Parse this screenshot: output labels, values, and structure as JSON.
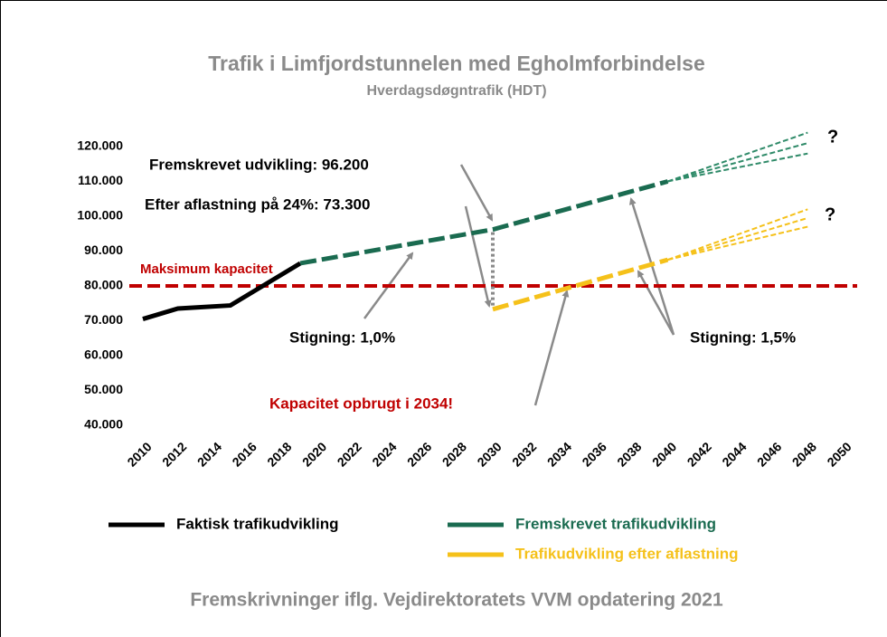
{
  "chart_data": {
    "type": "line",
    "title": "Trafik i Limfjordstunnelen med Egholmforbindelse",
    "subtitle": "Hverdagsdøgntrafik (HDT)",
    "source": "Fremskrivninger iflg. Vejdirektoratets VVM opdatering 2021",
    "xlim": [
      2010,
      2050
    ],
    "xticks": [
      2010,
      2012,
      2014,
      2016,
      2018,
      2020,
      2022,
      2024,
      2026,
      2028,
      2030,
      2032,
      2034,
      2036,
      2038,
      2040,
      2042,
      2044,
      2046,
      2048,
      2050
    ],
    "ylim": [
      40000,
      120000
    ],
    "yticks": [
      {
        "value": 40000,
        "label": "40.000"
      },
      {
        "value": 50000,
        "label": "50.000"
      },
      {
        "value": 60000,
        "label": "60.000"
      },
      {
        "value": 70000,
        "label": "70.000"
      },
      {
        "value": 80000,
        "label": "80.000"
      },
      {
        "value": 90000,
        "label": "90.000"
      },
      {
        "value": 100000,
        "label": "100.000"
      },
      {
        "value": 110000,
        "label": "110.000"
      },
      {
        "value": 120000,
        "label": "120.000"
      }
    ],
    "series": [
      {
        "name": "Faktisk trafikudvikling",
        "color": "#000000",
        "line_style": "solid",
        "x": [
          2010,
          2012,
          2015,
          2019
        ],
        "values": [
          70500,
          73500,
          74400,
          86500
        ]
      },
      {
        "name": "Fremskrevet trafikudvikling",
        "color": "#1a6b50",
        "line_style": "dashed",
        "x": [
          2019,
          2030,
          2040
        ],
        "values": [
          86500,
          96200,
          110000
        ]
      },
      {
        "name": "Trafikudvikling efter aflastning",
        "color": "#f5c11a",
        "line_style": "dashed",
        "x": [
          2030,
          2040
        ],
        "values": [
          73300,
          87500
        ]
      },
      {
        "color": "#2e8a68",
        "line_style": "fine",
        "x": [
          2040,
          2048
        ],
        "values": [
          110000,
          124000
        ]
      },
      {
        "color": "#2e8a68",
        "line_style": "fine",
        "x": [
          2040,
          2048
        ],
        "values": [
          110000,
          121000
        ]
      },
      {
        "color": "#2e8a68",
        "line_style": "fine",
        "x": [
          2040,
          2048
        ],
        "values": [
          110000,
          118000
        ]
      },
      {
        "color": "#f5c11a",
        "line_style": "fine",
        "x": [
          2040,
          2048
        ],
        "values": [
          87500,
          102000
        ]
      },
      {
        "color": "#f5c11a",
        "line_style": "fine",
        "x": [
          2040,
          2048
        ],
        "values": [
          87500,
          99500
        ]
      },
      {
        "color": "#f5c11a",
        "line_style": "fine",
        "x": [
          2040,
          2048
        ],
        "values": [
          87500,
          97000
        ]
      }
    ],
    "reference_line": {
      "label": "Maksimum kapacitet",
      "value": 80000,
      "color": "#c00000"
    },
    "annotations": [
      {
        "text": "Fremskrevet udvikling: 96.200",
        "color": "#000000"
      },
      {
        "text": "Efter aflastning på 24%:  73.300",
        "color": "#000000"
      },
      {
        "text": "Stigning: 1,0%",
        "color": "#000000"
      },
      {
        "text": "Stigning: 1,5%",
        "color": "#000000"
      },
      {
        "text": "Kapacitet opbrugt i 2034!",
        "color": "#c00000"
      },
      {
        "text": "?",
        "color": "#000000"
      },
      {
        "text": "?",
        "color": "#000000"
      }
    ]
  }
}
